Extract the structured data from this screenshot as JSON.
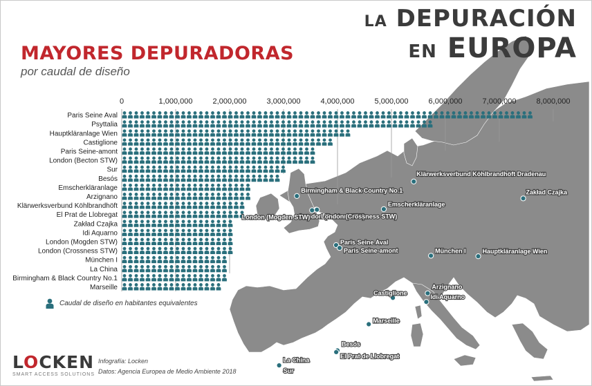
{
  "brand": {
    "line1_a": "LA",
    "line1_b": "DEPURACIÓN",
    "line2_a": "EN",
    "line2_b": "EUROPA"
  },
  "header": {
    "title": "MAYORES DEPURADORAS",
    "subtitle": "por caudal de diseño"
  },
  "legend": {
    "label": "Caudal de diseño en habitantes equivalentes"
  },
  "footer": {
    "logo_a": "L",
    "logo_o": "O",
    "logo_b": "CKEN",
    "tagline": "SMART ACCESS SOLUTIONS",
    "credit1": "Infografía: Locken",
    "credit2": "Datos: Agencia Europea de Medio Ambiente 2018"
  },
  "colors": {
    "accent_red": "#c1272d",
    "bar_teal": "#2a6f7c",
    "map_land": "#8b8b8b",
    "sea": "#ffffff",
    "text_dark": "#3b3b3b"
  },
  "chart_data": {
    "type": "bar",
    "orientation": "horizontal",
    "title": "MAYORES DEPURADORAS",
    "subtitle": "por caudal de diseño",
    "xlim": [
      0,
      8000000
    ],
    "ticks": [
      0,
      1000000,
      2000000,
      3000000,
      4000000,
      5000000,
      6000000,
      7000000,
      8000000
    ],
    "tick_labels": [
      "0",
      "1,000,000",
      "2,000,000",
      "3,000,000",
      "4,000,000",
      "5,000,000",
      "6,000,000",
      "7,000,000",
      "8,000,000"
    ],
    "categories": [
      "Paris Seine Aval",
      "Psyttalia",
      "Hauptkläranlage Wien",
      "Castiglione",
      "Paris Seine-amont",
      "London (Becton STW)",
      "Sur",
      "Besós",
      "Emscherkläranlage",
      "Arzignano",
      "Klärwerksverbund Köhlbrandhöft",
      "El Prat de Llobregat",
      "Zakład Czajka",
      "Idi Aquarno",
      "London (Mogden STW)",
      "London (Crossness STW)",
      "München I",
      "La China",
      "Birmingham & Black Country No.1",
      "Marseille"
    ],
    "values": [
      7600000,
      5800000,
      4200000,
      3900000,
      3600000,
      3600000,
      3000000,
      2900000,
      2400000,
      2400000,
      2300000,
      2300000,
      2100000,
      2100000,
      2050000,
      2050000,
      2000000,
      2000000,
      1950000,
      1900000
    ],
    "unit": "habitantes equivalentes",
    "legend": "Caudal de diseño en habitantes equivalentes",
    "map_labels": [
      {
        "text": "Klärwerksverbund Köhlbrandhöft Dradenau",
        "lon": 9.93,
        "lat": 53.53
      },
      {
        "text": "Zakład Czajka",
        "lon": 21.0,
        "lat": 52.32
      },
      {
        "text": "Birmingham & Black Country No.1",
        "lon": -1.89,
        "lat": 52.49
      },
      {
        "text": "London (Becton STW)",
        "lon": 0.08,
        "lat": 51.52
      },
      {
        "text": "London (Mogden STW)",
        "lon": -0.35,
        "lat": 51.47
      },
      {
        "text": "London (Crossness STW)",
        "lon": 0.14,
        "lat": 51.51
      },
      {
        "text": "Emscherkläranlage",
        "lon": 6.9,
        "lat": 51.55
      },
      {
        "text": "Paris Seine Aval",
        "lon": 2.08,
        "lat": 48.97
      },
      {
        "text": "Paris Seine-amont",
        "lon": 2.43,
        "lat": 48.77
      },
      {
        "text": "München I",
        "lon": 11.67,
        "lat": 48.21
      },
      {
        "text": "Hauptkläranlage Wien",
        "lon": 16.45,
        "lat": 48.17
      },
      {
        "text": "Castiglione",
        "lon": 7.82,
        "lat": 45.19
      },
      {
        "text": "Arzignano",
        "lon": 11.34,
        "lat": 45.52
      },
      {
        "text": "Idi Aquarno",
        "lon": 11.2,
        "lat": 44.9
      },
      {
        "text": "Marseille",
        "lon": 5.38,
        "lat": 43.3
      },
      {
        "text": "Besós",
        "lon": 2.22,
        "lat": 41.42
      },
      {
        "text": "El Prat de Llobregat",
        "lon": 2.09,
        "lat": 41.3
      },
      {
        "text": "La China",
        "lon": -3.7,
        "lat": 40.37
      },
      {
        "text": "Sur",
        "lon": -3.68,
        "lat": 40.35
      },
      {
        "text": "Psyttalia",
        "lon": 23.55,
        "lat": 37.93
      }
    ]
  }
}
